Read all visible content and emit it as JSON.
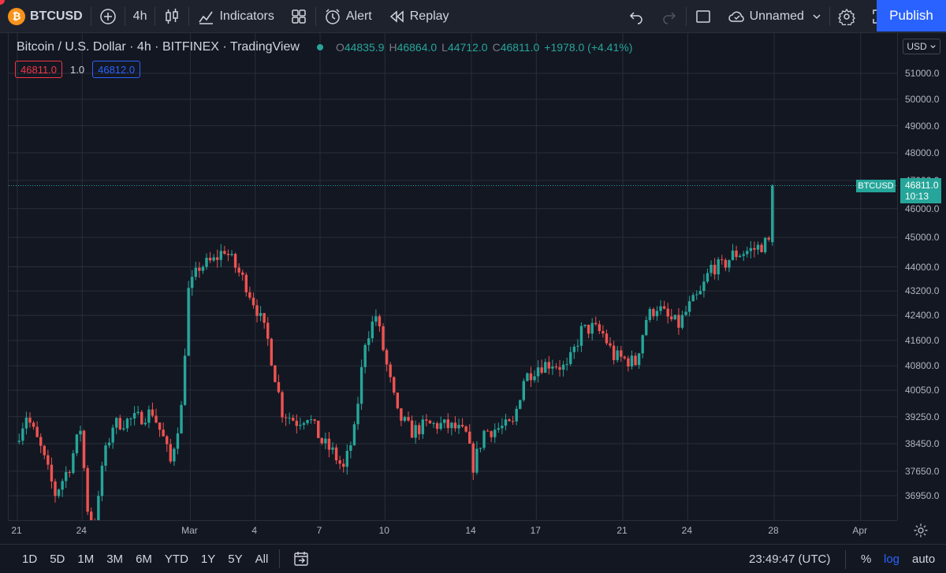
{
  "toolbar": {
    "symbol": "BTCUSD",
    "symbol_badge": "₿",
    "interval": "4h",
    "indicators_label": "Indicators",
    "alert_label": "Alert",
    "replay_label": "Replay",
    "layout_name": "Unnamed",
    "publish_label": "Publish",
    "icons": [
      "plus-icon",
      "candles-icon",
      "indicators-icon",
      "templates-icon",
      "alert-icon",
      "replay-icon",
      "undo-icon",
      "redo-icon",
      "fullscreen-square-icon",
      "cloud-icon",
      "chevron-down-icon",
      "gear-icon",
      "expand-icon",
      "camera-icon"
    ]
  },
  "legend": {
    "title": "Bitcoin / U.S. Dollar · 4h · BITFINEX · TradingView",
    "o_label": "O",
    "o": "44835.9",
    "h_label": "H",
    "h": "46864.0",
    "l_label": "L",
    "l": "44712.0",
    "c_label": "C",
    "c": "46811.0",
    "change": "+1978.0 (+4.41%)"
  },
  "trade": {
    "sell_price": "46811.0",
    "spread": "1.0",
    "buy_price": "46812.0"
  },
  "price_axis": {
    "currency": "USD",
    "last_symbol": "BTCUSD",
    "last_price": "46811.0",
    "countdown": "10:13"
  },
  "bottom": {
    "ranges": [
      "1D",
      "5D",
      "1M",
      "3M",
      "6M",
      "YTD",
      "1Y",
      "5Y",
      "All"
    ],
    "clock": "23:49:47 (UTC)",
    "percent_label": "%",
    "log_label": "log",
    "auto_label": "auto"
  },
  "colors": {
    "up": "#26a69a",
    "down": "#ef5350",
    "accent": "#2962ff",
    "background": "#131722"
  },
  "chart_data": {
    "type": "candlestick",
    "scale": "log",
    "grid": true,
    "y_ticks": [
      36950,
      37650,
      38450,
      39250,
      40050,
      40800,
      41600,
      42400,
      43200,
      44000,
      45000,
      46000,
      47000,
      48000,
      49000,
      50000,
      51000
    ],
    "y_tick_labels": [
      "36950.0",
      "37650.0",
      "38450.0",
      "39250.0",
      "40050.0",
      "40800.0",
      "41600.0",
      "42400.0",
      "43200.0",
      "44000.0",
      "45000.0",
      "46000.0",
      "47000.0",
      "48000.0",
      "49000.0",
      "50000.0",
      "51000.0"
    ],
    "x_ticks": [
      "21",
      "24",
      "Mar",
      "4",
      "7",
      "10",
      "14",
      "17",
      "21",
      "24",
      "28",
      "Apr"
    ],
    "x_range": [
      "2022-02-21",
      "2022-04-02"
    ],
    "y_range": [
      36350,
      52300
    ],
    "last_price": 46811.0,
    "path": [
      [
        "2022-02-21T00:00",
        38500
      ],
      [
        "2022-02-21T12:00",
        39300
      ],
      [
        "2022-02-22T04:00",
        38300
      ],
      [
        "2022-02-22T20:00",
        37000
      ],
      [
        "2022-02-23T12:00",
        37800
      ],
      [
        "2022-02-24T00:00",
        38900
      ],
      [
        "2022-02-24T08:00",
        36600
      ],
      [
        "2022-02-24T16:00",
        35800
      ],
      [
        "2022-02-25T00:00",
        37800
      ],
      [
        "2022-02-25T12:00",
        39000
      ],
      [
        "2022-02-26T00:00",
        39100
      ],
      [
        "2022-02-26T16:00",
        39200
      ],
      [
        "2022-02-27T08:00",
        39400
      ],
      [
        "2022-02-27T20:00",
        38600
      ],
      [
        "2022-02-28T04:00",
        37900
      ],
      [
        "2022-02-28T16:00",
        39500
      ],
      [
        "2022-03-01T00:00",
        43200
      ],
      [
        "2022-03-01T12:00",
        44000
      ],
      [
        "2022-03-02T04:00",
        44200
      ],
      [
        "2022-03-02T16:00",
        44600
      ],
      [
        "2022-03-03T04:00",
        44000
      ],
      [
        "2022-03-03T16:00",
        43400
      ],
      [
        "2022-03-04T04:00",
        42600
      ],
      [
        "2022-03-04T16:00",
        41600
      ],
      [
        "2022-03-05T08:00",
        39400
      ],
      [
        "2022-03-06T00:00",
        39100
      ],
      [
        "2022-03-06T12:00",
        39300
      ],
      [
        "2022-03-07T04:00",
        38500
      ],
      [
        "2022-03-07T16:00",
        38200
      ],
      [
        "2022-03-08T04:00",
        37700
      ],
      [
        "2022-03-08T16:00",
        38800
      ],
      [
        "2022-03-09T04:00",
        41600
      ],
      [
        "2022-03-09T16:00",
        42400
      ],
      [
        "2022-03-10T04:00",
        40800
      ],
      [
        "2022-03-10T16:00",
        39300
      ],
      [
        "2022-03-11T08:00",
        38800
      ],
      [
        "2022-03-12T00:00",
        39000
      ],
      [
        "2022-03-12T16:00",
        39000
      ],
      [
        "2022-03-13T08:00",
        38900
      ],
      [
        "2022-03-13T20:00",
        38700
      ],
      [
        "2022-03-14T04:00",
        37800
      ],
      [
        "2022-03-14T16:00",
        38800
      ],
      [
        "2022-03-15T08:00",
        38900
      ],
      [
        "2022-03-16T00:00",
        39000
      ],
      [
        "2022-03-16T12:00",
        40400
      ],
      [
        "2022-03-17T04:00",
        40800
      ],
      [
        "2022-03-17T20:00",
        40900
      ],
      [
        "2022-03-18T12:00",
        40700
      ],
      [
        "2022-03-19T04:00",
        41900
      ],
      [
        "2022-03-19T16:00",
        42000
      ],
      [
        "2022-03-20T04:00",
        41800
      ],
      [
        "2022-03-20T16:00",
        41100
      ],
      [
        "2022-03-21T04:00",
        41000
      ],
      [
        "2022-03-21T16:00",
        40900
      ],
      [
        "2022-03-22T04:00",
        42300
      ],
      [
        "2022-03-22T16:00",
        42700
      ],
      [
        "2022-03-23T04:00",
        42300
      ],
      [
        "2022-03-23T16:00",
        42100
      ],
      [
        "2022-03-24T04:00",
        42700
      ],
      [
        "2022-03-24T16:00",
        43100
      ],
      [
        "2022-03-25T04:00",
        44000
      ],
      [
        "2022-03-25T16:00",
        44000
      ],
      [
        "2022-03-26T04:00",
        44400
      ],
      [
        "2022-03-26T16:00",
        44500
      ],
      [
        "2022-03-27T04:00",
        44600
      ],
      [
        "2022-03-27T16:00",
        44800
      ],
      [
        "2022-03-27T20:00",
        44836
      ],
      [
        "2022-03-28T00:00",
        46811
      ]
    ]
  }
}
